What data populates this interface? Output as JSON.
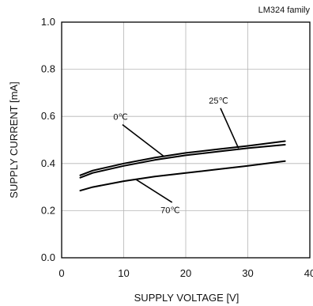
{
  "chart_data": {
    "type": "line",
    "title": "LM324 family",
    "xlabel": "SUPPLY VOLTAGE [V]",
    "ylabel": "SUPPLY CURRENT [mA]",
    "xlim": [
      0,
      40
    ],
    "ylim": [
      0.0,
      1.0
    ],
    "xticks": [
      0,
      10,
      20,
      30,
      40
    ],
    "yticks": [
      0.0,
      0.2,
      0.4,
      0.6,
      0.8,
      1.0
    ],
    "xtick_labels": [
      "0",
      "10",
      "20",
      "30",
      "40"
    ],
    "ytick_labels": [
      "0.0",
      "0.2",
      "0.4",
      "0.6",
      "0.8",
      "1.0"
    ],
    "grid": true,
    "line_color": "#000000",
    "series": [
      {
        "name": "0℃",
        "x": [
          3,
          5,
          10,
          15,
          20,
          25,
          30,
          36
        ],
        "y": [
          0.34,
          0.36,
          0.39,
          0.415,
          0.435,
          0.45,
          0.465,
          0.48
        ]
      },
      {
        "name": "25℃",
        "x": [
          3,
          5,
          10,
          15,
          20,
          25,
          30,
          36
        ],
        "y": [
          0.35,
          0.37,
          0.4,
          0.425,
          0.445,
          0.46,
          0.475,
          0.495
        ]
      },
      {
        "name": "70℃",
        "x": [
          3,
          5,
          10,
          15,
          20,
          25,
          30,
          36
        ],
        "y": [
          0.285,
          0.3,
          0.325,
          0.345,
          0.36,
          0.375,
          0.39,
          0.41
        ]
      }
    ]
  }
}
